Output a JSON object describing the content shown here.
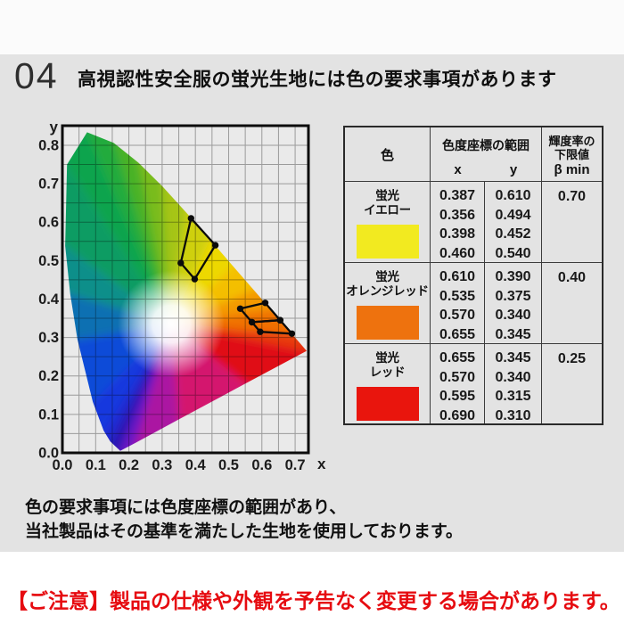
{
  "page": {
    "number": "04",
    "title": "高視認性安全服の蛍光生地には色の要求事項があります",
    "footnote_line1": "色の要求事項には色度座標の範囲があり、",
    "footnote_line2": "当社製品はその基準を満たした生地を使用しております。",
    "notice": "【ご注意】製品の仕様や外観を予告なく変更する場合があります。",
    "notice_color": "#e60b10",
    "panel_bg": "#e3e3e3"
  },
  "table": {
    "headers": {
      "color": "色",
      "range": "色度座標の範囲",
      "x": "x",
      "y": "y",
      "beta_line1": "輝度率の",
      "beta_line2": "下限値",
      "beta_symbol": "β min"
    },
    "rows": [
      {
        "name_line1": "蛍光",
        "name_line2": "イエロー",
        "swatch": "#f2ea20",
        "x": [
          "0.387",
          "0.356",
          "0.398",
          "0.460"
        ],
        "y": [
          "0.610",
          "0.494",
          "0.452",
          "0.540"
        ],
        "beta": "0.70"
      },
      {
        "name_line1": "蛍光",
        "name_line2": "オレンジレッド",
        "swatch": "#ee720e",
        "x": [
          "0.610",
          "0.535",
          "0.570",
          "0.655"
        ],
        "y": [
          "0.390",
          "0.375",
          "0.340",
          "0.345"
        ],
        "beta": "0.40"
      },
      {
        "name_line1": "蛍光",
        "name_line2": "レッド",
        "swatch": "#e9150d",
        "x": [
          "0.655",
          "0.570",
          "0.595",
          "0.690"
        ],
        "y": [
          "0.345",
          "0.340",
          "0.315",
          "0.310"
        ],
        "beta": "0.25"
      }
    ]
  },
  "chart_data": {
    "type": "area",
    "title": "CIE 1931 chromaticity diagram with fluorescent color requirement regions",
    "xlabel": "x",
    "ylabel": "y",
    "xlim": [
      0,
      0.74
    ],
    "ylim": [
      0,
      0.851
    ],
    "x_ticks": [
      0.0,
      0.1,
      0.2,
      0.3,
      0.4,
      0.5,
      0.6,
      0.7
    ],
    "y_ticks": [
      0.0,
      0.1,
      0.2,
      0.3,
      0.4,
      0.5,
      0.6,
      0.7,
      0.8
    ],
    "grid_step": 0.05,
    "grid_on": true,
    "plot_bg": "#eaeaea",
    "white_point": [
      0.327,
      0.335
    ],
    "locus": [
      [
        0.1741,
        0.005,
        "#2c12b4"
      ],
      [
        0.144,
        0.0297,
        "#1c2ad4"
      ],
      [
        0.1241,
        0.0578,
        "#1638de"
      ],
      [
        0.0913,
        0.1327,
        "#114bd8"
      ],
      [
        0.0454,
        0.295,
        "#0d6fb2"
      ],
      [
        0.0235,
        0.4127,
        "#0d8f8a"
      ],
      [
        0.0082,
        0.5384,
        "#0e9c63"
      ],
      [
        0.0139,
        0.7502,
        "#10a44d"
      ],
      [
        0.0743,
        0.8338,
        "#23ab3c"
      ],
      [
        0.1547,
        0.8059,
        "#49b228"
      ],
      [
        0.2296,
        0.7543,
        "#79bc1b"
      ],
      [
        0.3016,
        0.6923,
        "#a6c513"
      ],
      [
        0.3731,
        0.6245,
        "#cfd00a"
      ],
      [
        0.4441,
        0.5547,
        "#edd805"
      ],
      [
        0.5125,
        0.4866,
        "#f4bf03"
      ],
      [
        0.5752,
        0.4242,
        "#f49902"
      ],
      [
        0.627,
        0.3725,
        "#f07106"
      ],
      [
        0.6915,
        0.3083,
        "#e8380f"
      ],
      [
        0.7347,
        0.2653,
        "#e01118"
      ],
      [
        0.55,
        0.18,
        "#d4146e"
      ],
      [
        0.35,
        0.087,
        "#ab16a2"
      ],
      [
        0.22,
        0.026,
        "#6a13c4"
      ]
    ],
    "regions": [
      {
        "name": "蛍光イエロー",
        "beta_min": "0.70",
        "points": [
          [
            0.387,
            0.61
          ],
          [
            0.356,
            0.494
          ],
          [
            0.398,
            0.452
          ],
          [
            0.46,
            0.54
          ]
        ]
      },
      {
        "name": "蛍光オレンジレッド",
        "beta_min": "0.40",
        "points": [
          [
            0.61,
            0.39
          ],
          [
            0.535,
            0.375
          ],
          [
            0.57,
            0.34
          ],
          [
            0.655,
            0.345
          ]
        ]
      },
      {
        "name": "蛍光レッド",
        "beta_min": "0.25",
        "points": [
          [
            0.655,
            0.345
          ],
          [
            0.57,
            0.34
          ],
          [
            0.595,
            0.315
          ],
          [
            0.69,
            0.31
          ]
        ]
      }
    ]
  }
}
